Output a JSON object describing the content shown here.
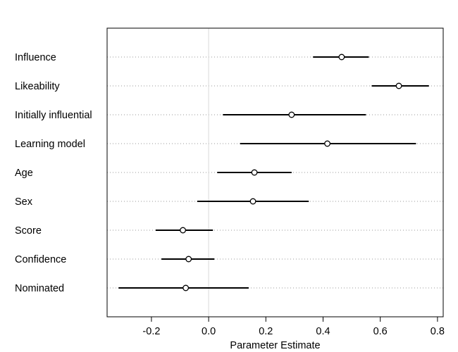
{
  "chart_data": {
    "type": "forest",
    "xlabel": "Parameter Estimate",
    "xlim": [
      -0.355,
      0.82
    ],
    "xticks": [
      -0.2,
      0.0,
      0.2,
      0.4,
      0.6,
      0.8
    ],
    "xtick_labels": [
      "-0.2",
      "0.0",
      "0.2",
      "0.4",
      "0.6",
      "0.8"
    ],
    "reference_line": 0.0,
    "grid": "dotted horizontal lines at each row",
    "rows": [
      {
        "label": "Influence",
        "estimate": 0.465,
        "lower": 0.365,
        "upper": 0.56
      },
      {
        "label": "Likeability",
        "estimate": 0.665,
        "lower": 0.57,
        "upper": 0.77
      },
      {
        "label": "Initially influential",
        "estimate": 0.29,
        "lower": 0.05,
        "upper": 0.55
      },
      {
        "label": "Learning model",
        "estimate": 0.415,
        "lower": 0.11,
        "upper": 0.725
      },
      {
        "label": "Age",
        "estimate": 0.16,
        "lower": 0.03,
        "upper": 0.29
      },
      {
        "label": "Sex",
        "estimate": 0.155,
        "lower": -0.04,
        "upper": 0.35
      },
      {
        "label": "Score",
        "estimate": -0.09,
        "lower": -0.185,
        "upper": 0.015
      },
      {
        "label": "Confidence",
        "estimate": -0.07,
        "lower": -0.165,
        "upper": 0.02
      },
      {
        "label": "Nominated",
        "estimate": -0.08,
        "lower": -0.315,
        "upper": 0.14
      }
    ]
  }
}
